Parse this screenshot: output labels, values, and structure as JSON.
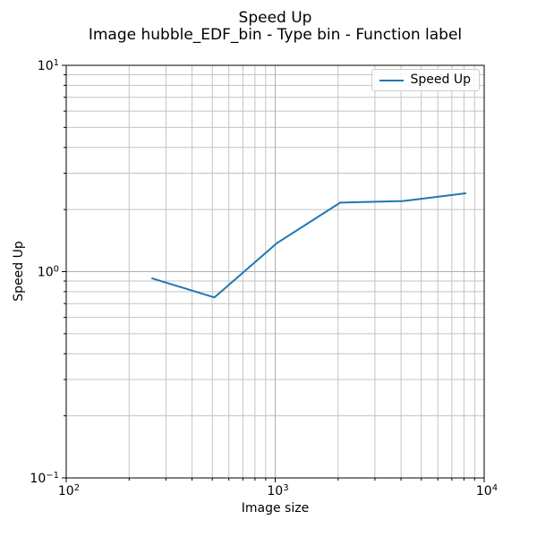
{
  "chart_data": {
    "type": "line",
    "title_lines": [
      "Speed Up",
      "Image hubble_EDF_bin - Type bin - Function label"
    ],
    "xlabel": "Image size",
    "ylabel": "Speed Up",
    "xscale": "log",
    "yscale": "log",
    "xlim": [
      100,
      10000
    ],
    "ylim": [
      0.1,
      10
    ],
    "grid": "both-major-and-minor",
    "legend": {
      "position": "upper-right",
      "entries": [
        "Speed Up"
      ]
    },
    "series": [
      {
        "name": "Speed Up",
        "color": "#1f77b4",
        "x": [
          256,
          512,
          1024,
          2048,
          4096,
          8192
        ],
        "y": [
          0.93,
          0.75,
          1.38,
          2.16,
          2.2,
          2.4
        ]
      }
    ]
  },
  "colors": {
    "background": "#ffffff",
    "line": "#1f77b4",
    "grid_major": "#b0b0b0",
    "grid_minor": "#c3c3c3",
    "axis": "#000000",
    "text": "#000000",
    "legend_border": "#cccccc"
  }
}
